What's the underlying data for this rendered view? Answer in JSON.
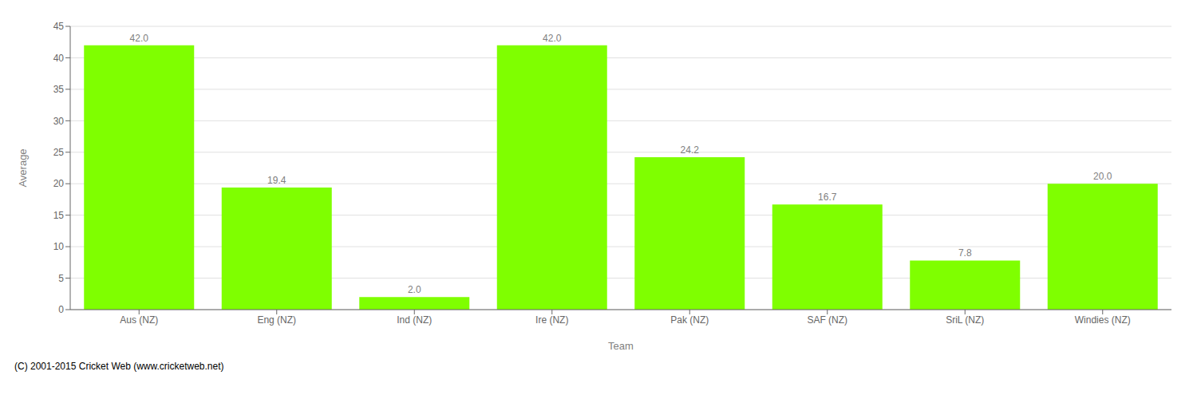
{
  "chart_data": {
    "type": "bar",
    "xlabel": "Team",
    "ylabel": "Average",
    "categories": [
      "Aus (NZ)",
      "Eng (NZ)",
      "Ind (NZ)",
      "Ire (NZ)",
      "Pak (NZ)",
      "SAF (NZ)",
      "SriL (NZ)",
      "Windies (NZ)"
    ],
    "values": [
      42.0,
      19.4,
      2.0,
      42.0,
      24.2,
      16.7,
      7.8,
      20.0
    ],
    "value_labels": [
      "42.0",
      "19.4",
      "2.0",
      "42.0",
      "24.2",
      "16.7",
      "7.8",
      "20.0"
    ],
    "data_labels": true,
    "color": "#7FFF00",
    "ylim": [
      0,
      45
    ],
    "yticks": [
      0,
      5,
      10,
      15,
      20,
      25,
      30,
      35,
      40,
      45
    ],
    "grid": true,
    "annotations": [
      "(C) 2001-2015 Cricket Web (www.cricketweb.net)"
    ]
  }
}
